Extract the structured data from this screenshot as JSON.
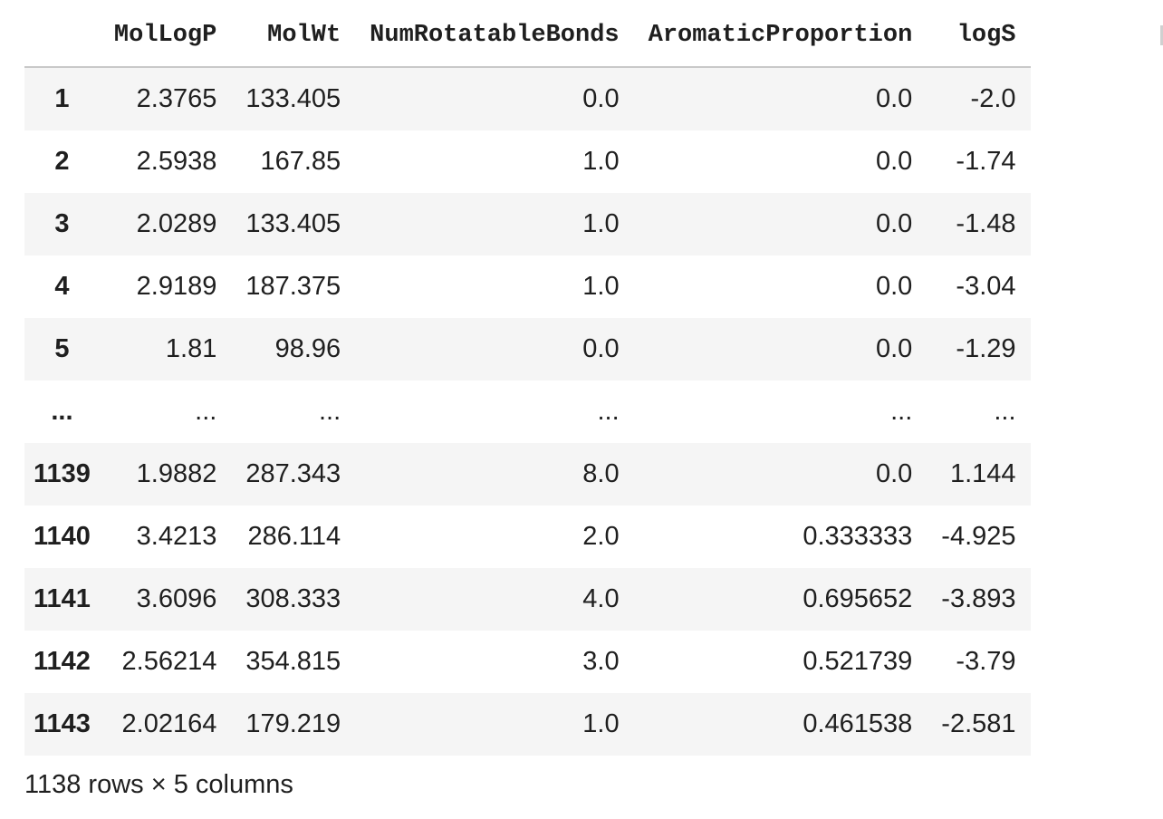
{
  "table": {
    "columns": [
      "MolLogP",
      "MolWt",
      "NumRotatableBonds",
      "AromaticProportion",
      "logS"
    ],
    "index_header": "",
    "rows": [
      {
        "index": "1",
        "cells": [
          "2.3765",
          "133.405",
          "0.0",
          "0.0",
          "-2.0"
        ]
      },
      {
        "index": "2",
        "cells": [
          "2.5938",
          "167.85",
          "1.0",
          "0.0",
          "-1.74"
        ]
      },
      {
        "index": "3",
        "cells": [
          "2.0289",
          "133.405",
          "1.0",
          "0.0",
          "-1.48"
        ]
      },
      {
        "index": "4",
        "cells": [
          "2.9189",
          "187.375",
          "1.0",
          "0.0",
          "-3.04"
        ]
      },
      {
        "index": "5",
        "cells": [
          "1.81",
          "98.96",
          "0.0",
          "0.0",
          "-1.29"
        ]
      },
      {
        "index": "...",
        "cells": [
          "...",
          "...",
          "...",
          "...",
          "..."
        ]
      },
      {
        "index": "1139",
        "cells": [
          "1.9882",
          "287.343",
          "8.0",
          "0.0",
          "1.144"
        ]
      },
      {
        "index": "1140",
        "cells": [
          "3.4213",
          "286.114",
          "2.0",
          "0.333333",
          "-4.925"
        ]
      },
      {
        "index": "1141",
        "cells": [
          "3.6096",
          "308.333",
          "4.0",
          "0.695652",
          "-3.893"
        ]
      },
      {
        "index": "1142",
        "cells": [
          "2.56214",
          "354.815",
          "3.0",
          "0.521739",
          "-3.79"
        ]
      },
      {
        "index": "1143",
        "cells": [
          "2.02164",
          "179.219",
          "1.0",
          "0.461538",
          "-2.581"
        ]
      }
    ]
  },
  "caption": "1138 rows × 5 columns",
  "colors": {
    "stripe": "#f5f5f5",
    "header_rule": "#c9c9c9",
    "text": "#1f1f1f"
  }
}
